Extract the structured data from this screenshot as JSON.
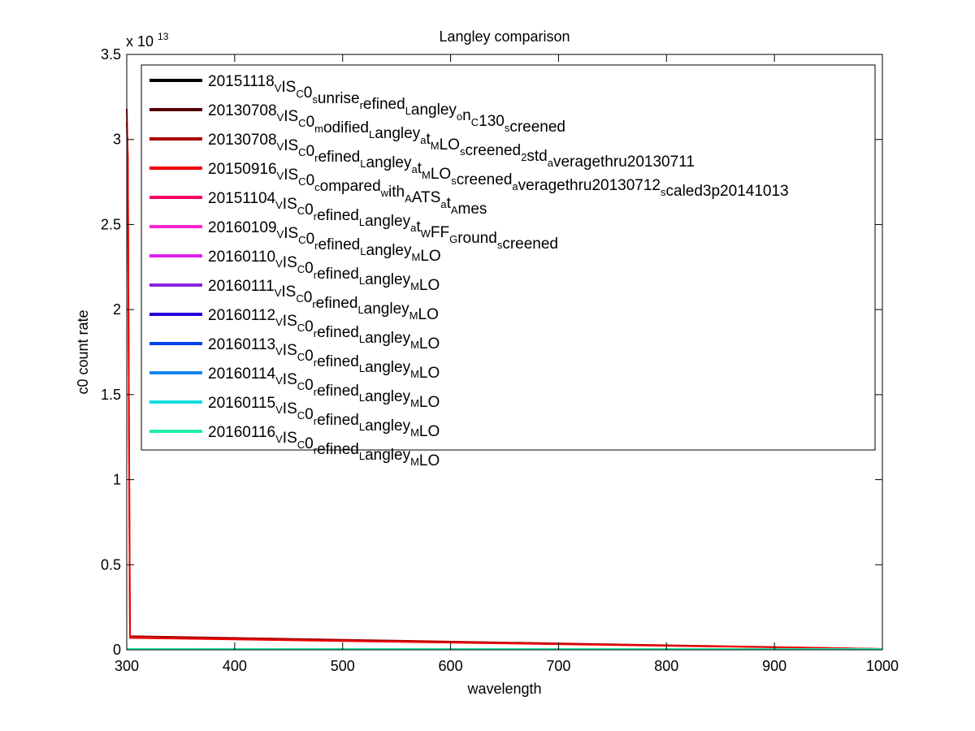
{
  "chart_data": {
    "type": "line",
    "title": "Langley comparison",
    "xlabel": "wavelength",
    "ylabel": "c0 count rate",
    "exponent_label": "x 10",
    "exponent_value": "13",
    "xlim": [
      300,
      1000
    ],
    "ylim": [
      0,
      3.5
    ],
    "y_scale_factor": 10000000000000.0,
    "x_ticks": [
      300,
      400,
      500,
      600,
      700,
      800,
      900,
      1000
    ],
    "y_ticks": [
      0,
      0.5,
      1,
      1.5,
      2,
      2.5,
      3,
      3.5
    ],
    "y_tick_labels": [
      "0",
      "0.5",
      "1",
      "1.5",
      "2",
      "2.5",
      "3",
      "3.5"
    ],
    "legend_position": "top-right",
    "grid": false,
    "series": [
      {
        "name": "20151118_VIS_C0_sunrise_refined_Langley_on_C130_screened",
        "display": "20151118[V]IS[C]0[s]unrise[r]efined[L]angley[o]n[C]130[s]creened",
        "color": "#000000",
        "x": [
          300,
          1000
        ],
        "y": [
          0.005,
          0.005
        ]
      },
      {
        "name": "20130708_VIS_C0_modified_Langley_at_MLO_screened_2std_averagethru20130711",
        "display": "20130708[V]IS[C]0[m]odified[L]angley[a]t[M]LO[s]creened[2]std[a]veragethru20130711",
        "color": "#550000",
        "x": [
          300,
          1000
        ],
        "y": [
          0.005,
          0.005
        ]
      },
      {
        "name": "20130708_VIS_C0_refined_Langley_at_MLO_screened_averagethru20130712_scaled3p20141013",
        "display": "20130708[V]IS[C]0[r]efined[L]angley[a]t[M]LO[s]creened[a]veragethru20130712[s]caled3p20141013",
        "color": "#aa0000",
        "x": [
          300,
          301,
          302,
          303,
          1000
        ],
        "y": [
          3.18,
          2.9,
          1.4,
          0.08,
          0.005
        ]
      },
      {
        "name": "20150916_VIS_C0_compared_with_AATS_at_Ames",
        "display": "20150916[V]IS[C]0[c]ompared[w]ith[A]ATS[a]t[A]mes",
        "color": "#ee0000",
        "x": [
          300,
          301,
          302,
          303,
          1000
        ],
        "y": [
          3.1,
          2.88,
          1.38,
          0.07,
          0.005
        ]
      },
      {
        "name": "20151104_VIS_C0_refined_Langley_at_WFF_Ground_screened",
        "display": "20151104[V]IS[C]0[r]efined[L]angley[a]t[W]FF[G]round[s]creened",
        "color": "#ff0066",
        "x": [
          300,
          1000
        ],
        "y": [
          0.005,
          0.005
        ]
      },
      {
        "name": "20160109_VIS_C0_refined_Langley_MLO",
        "display": "20160109[V]IS[C]0[r]efined[L]angley[M]LO",
        "color": "#ff22cc",
        "x": [
          300,
          1000
        ],
        "y": [
          0.005,
          0.005
        ]
      },
      {
        "name": "20160110_VIS_C0_refined_Langley_MLO",
        "display": "20160110[V]IS[C]0[r]efined[L]angley[M]LO",
        "color": "#dd22ee",
        "x": [
          300,
          1000
        ],
        "y": [
          0.005,
          0.005
        ]
      },
      {
        "name": "20160111_VIS_C0_refined_Langley_MLO",
        "display": "20160111[V]IS[C]0[r]efined[L]angley[M]LO",
        "color": "#8822dd",
        "x": [
          300,
          1000
        ],
        "y": [
          0.005,
          0.005
        ]
      },
      {
        "name": "20160112_VIS_C0_refined_Langley_MLO",
        "display": "20160112[V]IS[C]0[r]efined[L]angley[M]LO",
        "color": "#2200dd",
        "x": [
          300,
          1000
        ],
        "y": [
          0.005,
          0.005
        ]
      },
      {
        "name": "20160113_VIS_C0_refined_Langley_MLO",
        "display": "20160113[V]IS[C]0[r]efined[L]angley[M]LO",
        "color": "#0044ee",
        "x": [
          300,
          1000
        ],
        "y": [
          0.005,
          0.005
        ]
      },
      {
        "name": "20160114_VIS_C0_refined_Langley_MLO",
        "display": "20160114[V]IS[C]0[r]efined[L]angley[M]LO",
        "color": "#1188ee",
        "x": [
          300,
          1000
        ],
        "y": [
          0.005,
          0.005
        ]
      },
      {
        "name": "20160115_VIS_C0_refined_Langley_MLO",
        "display": "20160115[V]IS[C]0[r]efined[L]angley[M]LO",
        "color": "#11dddd",
        "x": [
          300,
          1000
        ],
        "y": [
          0.005,
          0.005
        ]
      },
      {
        "name": "20160116_VIS_C0_refined_Langley_MLO",
        "display": "20160116[V]IS[C]0[r]efined[L]angley[M]LO",
        "color": "#22eeaa",
        "x": [
          300,
          1000
        ],
        "y": [
          0.005,
          0.005
        ]
      }
    ]
  }
}
